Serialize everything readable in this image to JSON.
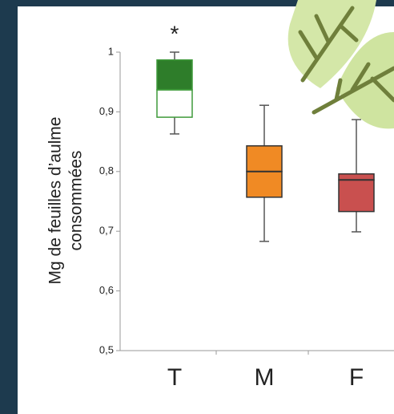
{
  "chart_data": {
    "type": "box",
    "ylabel": [
      "Mg de feuilles d’aulme",
      "consommées"
    ],
    "categories": [
      "T",
      "M",
      "F"
    ],
    "boxes": [
      {
        "min": 0.863,
        "q1": 0.891,
        "median": 0.937,
        "q3": 0.987,
        "max": 1.0,
        "color": "#2e7d2a",
        "lower_color": "#ffffff",
        "stroke": "#3f9a3a"
      },
      {
        "min": 0.683,
        "q1": 0.757,
        "median": 0.8,
        "q3": 0.843,
        "max": 0.911,
        "color": "#f08a24",
        "lower_color": "#f08a24",
        "stroke": "#333333"
      },
      {
        "min": 0.699,
        "q1": 0.733,
        "median": 0.786,
        "q3": 0.796,
        "max": 0.887,
        "color": "#c9504f",
        "lower_color": "#c9504f",
        "stroke": "#333333"
      }
    ],
    "annotations": [
      {
        "text": "*",
        "category": 0
      }
    ],
    "ylim": [
      0.5,
      1
    ],
    "yticks": [
      {
        "value": 0.5,
        "label": "0,5"
      },
      {
        "value": 0.6,
        "label": "0,6"
      },
      {
        "value": 0.7,
        "label": "0,7"
      },
      {
        "value": 0.8,
        "label": "0,8"
      },
      {
        "value": 0.9,
        "label": "0,9"
      },
      1
    ]
  }
}
